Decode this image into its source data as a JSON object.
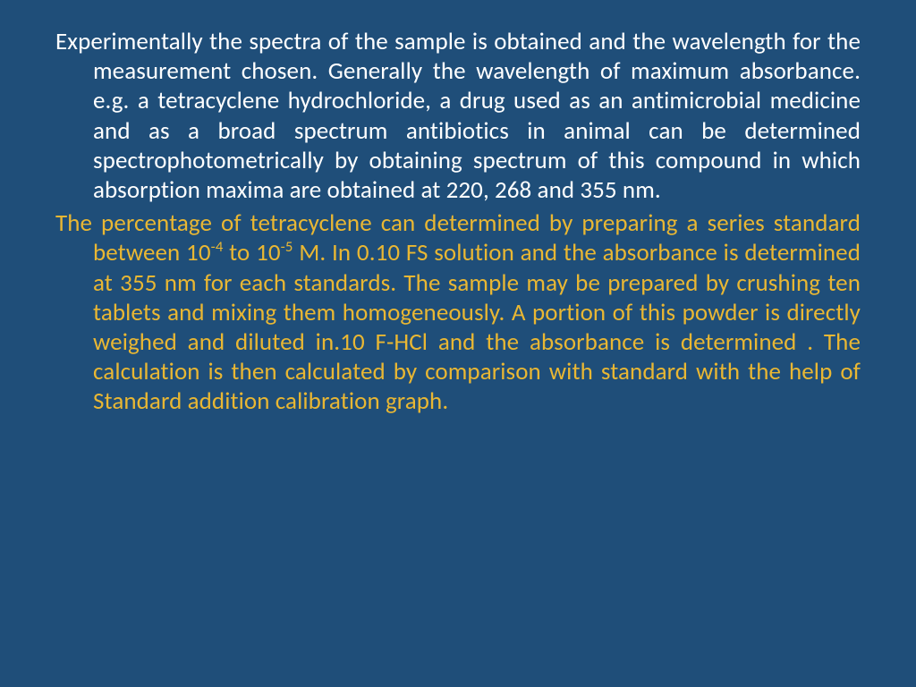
{
  "slide": {
    "background_color": "#1f4e79",
    "font_family": "Calibri",
    "font_size_pt": 20,
    "text_align": "justify",
    "paragraph1": {
      "color": "#ffffff",
      "text": "Experimentally the spectra of the sample is obtained and the wavelength for the measurement chosen. Generally the wavelength of maximum absorbance. e.g. a tetracyclene hydrochloride, a drug used as an antimicrobial medicine and as a broad spectrum antibiotics in animal can be determined spectrophotometrically by obtaining spectrum of this compound in which absorption maxima are obtained at 220, 268 and 355 nm."
    },
    "paragraph2": {
      "color": "#e9b733",
      "text_before_sup1": "The percentage of tetracyclene can determined by preparing  a series standard between 10",
      "sup1": "-4",
      "text_mid": " to 10",
      "sup2": "-5",
      "text_after": " M. In 0.10 FS solution and the absorbance is determined at 355 nm for each standards.  The sample may be prepared by crushing ten tablets and mixing them homogeneously. A portion of this powder is directly weighed and diluted in.10 F-HCl and the absorbance is determined . The calculation is then calculated by comparison with standard with the help of Standard addition calibration graph."
    }
  }
}
